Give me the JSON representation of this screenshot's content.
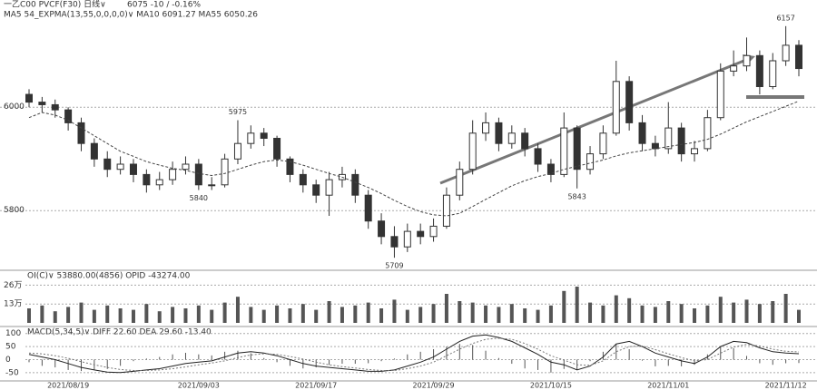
{
  "chart_data": {
    "type": "candlestick",
    "title": "一乙C00 PVCF(F30)  日线∨",
    "quote": "6075  -10 / -0.16%",
    "indicator_text": "MA5 54_EXPMA(13,55,0,0,0,0)∨  MA10 6091.27  MA55 6050.26",
    "categories": [
      null,
      null,
      null,
      "2021/08/19",
      null,
      null,
      null,
      null,
      null,
      null,
      null,
      null,
      null,
      "2021/09/03",
      null,
      null,
      null,
      null,
      null,
      null,
      null,
      null,
      "2021/09/17",
      null,
      null,
      null,
      null,
      null,
      null,
      null,
      null,
      "2021/09/29",
      null,
      null,
      null,
      null,
      null,
      null,
      null,
      null,
      "2021/10/15",
      null,
      null,
      null,
      null,
      null,
      null,
      null,
      null,
      "2021/11/01",
      null,
      null,
      null,
      null,
      null,
      null,
      null,
      null,
      "2021/11/12",
      null
    ],
    "open": [
      6025,
      6010,
      6005,
      5995,
      5970,
      5930,
      5900,
      5880,
      5890,
      5870,
      5850,
      5860,
      5880,
      5890,
      5850,
      5850,
      5900,
      5930,
      5950,
      5940,
      5900,
      5870,
      5850,
      5830,
      5860,
      5870,
      5830,
      5780,
      5750,
      5730,
      5760,
      5750,
      5770,
      5830,
      5880,
      5950,
      5970,
      5930,
      5950,
      5920,
      5890,
      5870,
      5960,
      5880,
      5910,
      5950,
      6050,
      5970,
      5930,
      5920,
      5960,
      5910,
      5920,
      5980,
      6070,
      6080,
      6100,
      6040,
      6090,
      6120
    ],
    "high": [
      6035,
      6020,
      6015,
      6000,
      5980,
      5940,
      5915,
      5905,
      5900,
      5880,
      5875,
      5895,
      5905,
      5900,
      5865,
      5910,
      5975,
      5965,
      5960,
      5945,
      5905,
      5880,
      5860,
      5875,
      5885,
      5880,
      5840,
      5795,
      5770,
      5775,
      5775,
      5785,
      5845,
      5895,
      5975,
      5990,
      5980,
      5965,
      5960,
      5930,
      5900,
      5990,
      5965,
      5925,
      5965,
      6090,
      6060,
      5985,
      5945,
      6010,
      5970,
      5935,
      5995,
      6085,
      6110,
      6135,
      6110,
      6105,
      6157,
      6130
    ],
    "low": [
      6000,
      5990,
      5980,
      5955,
      5915,
      5885,
      5865,
      5870,
      5855,
      5835,
      5840,
      5850,
      5870,
      5840,
      5840,
      5845,
      5890,
      5920,
      5925,
      5885,
      5855,
      5835,
      5815,
      5790,
      5845,
      5815,
      5765,
      5735,
      5709,
      5720,
      5735,
      5740,
      5765,
      5820,
      5870,
      5935,
      5915,
      5920,
      5905,
      5875,
      5855,
      5865,
      5843,
      5870,
      5900,
      5945,
      5955,
      5915,
      5905,
      5910,
      5895,
      5895,
      5915,
      5975,
      6060,
      6070,
      6025,
      6035,
      6080,
      6060
    ],
    "close": [
      6010,
      6005,
      5995,
      5970,
      5930,
      5900,
      5880,
      5890,
      5870,
      5850,
      5860,
      5880,
      5890,
      5850,
      5850,
      5900,
      5930,
      5950,
      5940,
      5900,
      5870,
      5850,
      5830,
      5860,
      5870,
      5830,
      5780,
      5750,
      5730,
      5760,
      5750,
      5770,
      5830,
      5880,
      5950,
      5970,
      5930,
      5950,
      5920,
      5890,
      5870,
      5960,
      5880,
      5910,
      5950,
      6050,
      5970,
      5930,
      5920,
      5960,
      5910,
      5920,
      5980,
      6070,
      6080,
      6100,
      6040,
      6090,
      6120,
      6075
    ],
    "ma": [
      5980,
      5990,
      5985,
      5975,
      5960,
      5945,
      5930,
      5915,
      5905,
      5895,
      5888,
      5882,
      5878,
      5872,
      5868,
      5872,
      5880,
      5888,
      5895,
      5898,
      5895,
      5888,
      5880,
      5872,
      5865,
      5855,
      5845,
      5833,
      5820,
      5808,
      5798,
      5792,
      5790,
      5795,
      5808,
      5822,
      5835,
      5848,
      5858,
      5866,
      5872,
      5880,
      5886,
      5892,
      5898,
      5906,
      5912,
      5916,
      5920,
      5924,
      5928,
      5932,
      5938,
      5948,
      5960,
      5972,
      5982,
      5992,
      6002,
      6012
    ],
    "ylim": [
      5690,
      6190
    ],
    "yticks": [
      6000,
      5800
    ],
    "grid": true,
    "up_color": "#ffffff",
    "down_color": "#333333",
    "ma_color": "#444444",
    "volume_title": "OI(C)∨ 53880.00(4856)  OPID -43274.00",
    "volume": [
      10,
      12,
      8,
      11,
      14,
      9,
      12,
      10,
      9,
      13,
      8,
      11,
      10,
      12,
      9,
      14,
      18,
      11,
      9,
      12,
      10,
      13,
      9,
      15,
      11,
      12,
      14,
      10,
      16,
      9,
      11,
      13,
      20,
      15,
      14,
      12,
      11,
      13,
      10,
      9,
      12,
      22,
      25,
      14,
      12,
      19,
      17,
      12,
      11,
      15,
      13,
      10,
      12,
      18,
      14,
      16,
      13,
      15,
      20,
      9
    ],
    "volume_ylim": [
      0,
      35
    ],
    "volume_yticks": [
      {
        "value": 26,
        "label": "26万"
      },
      {
        "value": 13,
        "label": "13万"
      }
    ],
    "volume_color": "#555555",
    "macd_title": "MACD(5,34,5)∨  DIFF 22.60  DEA 29.60  -13.40",
    "diff": [
      20,
      10,
      0,
      -15,
      -30,
      -40,
      -48,
      -50,
      -45,
      -40,
      -35,
      -25,
      -15,
      -10,
      -5,
      10,
      25,
      30,
      25,
      15,
      0,
      -15,
      -25,
      -30,
      -35,
      -40,
      -45,
      -45,
      -40,
      -25,
      -10,
      10,
      40,
      70,
      90,
      95,
      85,
      70,
      45,
      20,
      -10,
      -20,
      -40,
      -25,
      10,
      60,
      70,
      50,
      25,
      10,
      -5,
      -15,
      10,
      50,
      70,
      65,
      45,
      30,
      25,
      22.6
    ],
    "dea": [
      25,
      22,
      15,
      5,
      -8,
      -20,
      -30,
      -38,
      -42,
      -42,
      -40,
      -35,
      -28,
      -20,
      -13,
      -5,
      8,
      18,
      22,
      20,
      12,
      2,
      -10,
      -20,
      -27,
      -32,
      -38,
      -42,
      -42,
      -35,
      -25,
      -10,
      15,
      40,
      62,
      78,
      82,
      78,
      62,
      40,
      15,
      -2,
      -20,
      -22,
      -5,
      30,
      50,
      52,
      38,
      22,
      8,
      -5,
      0,
      25,
      48,
      58,
      52,
      40,
      32,
      29.6
    ],
    "macd_hist": [
      -10,
      -24,
      -30,
      -40,
      -44,
      -40,
      -36,
      -24,
      -6,
      4,
      10,
      20,
      26,
      20,
      16,
      30,
      34,
      24,
      6,
      -10,
      -24,
      -34,
      -30,
      -20,
      -16,
      -16,
      -14,
      -6,
      4,
      20,
      30,
      40,
      50,
      60,
      56,
      34,
      6,
      -16,
      -34,
      -40,
      -50,
      -36,
      -40,
      -6,
      30,
      60,
      40,
      -4,
      -26,
      -24,
      -26,
      -20,
      20,
      50,
      44,
      14,
      -14,
      -20,
      -14,
      -13.4
    ],
    "macd_ylim": [
      -75,
      120
    ],
    "macd_yticks": [
      100,
      50,
      0,
      -50
    ]
  }
}
